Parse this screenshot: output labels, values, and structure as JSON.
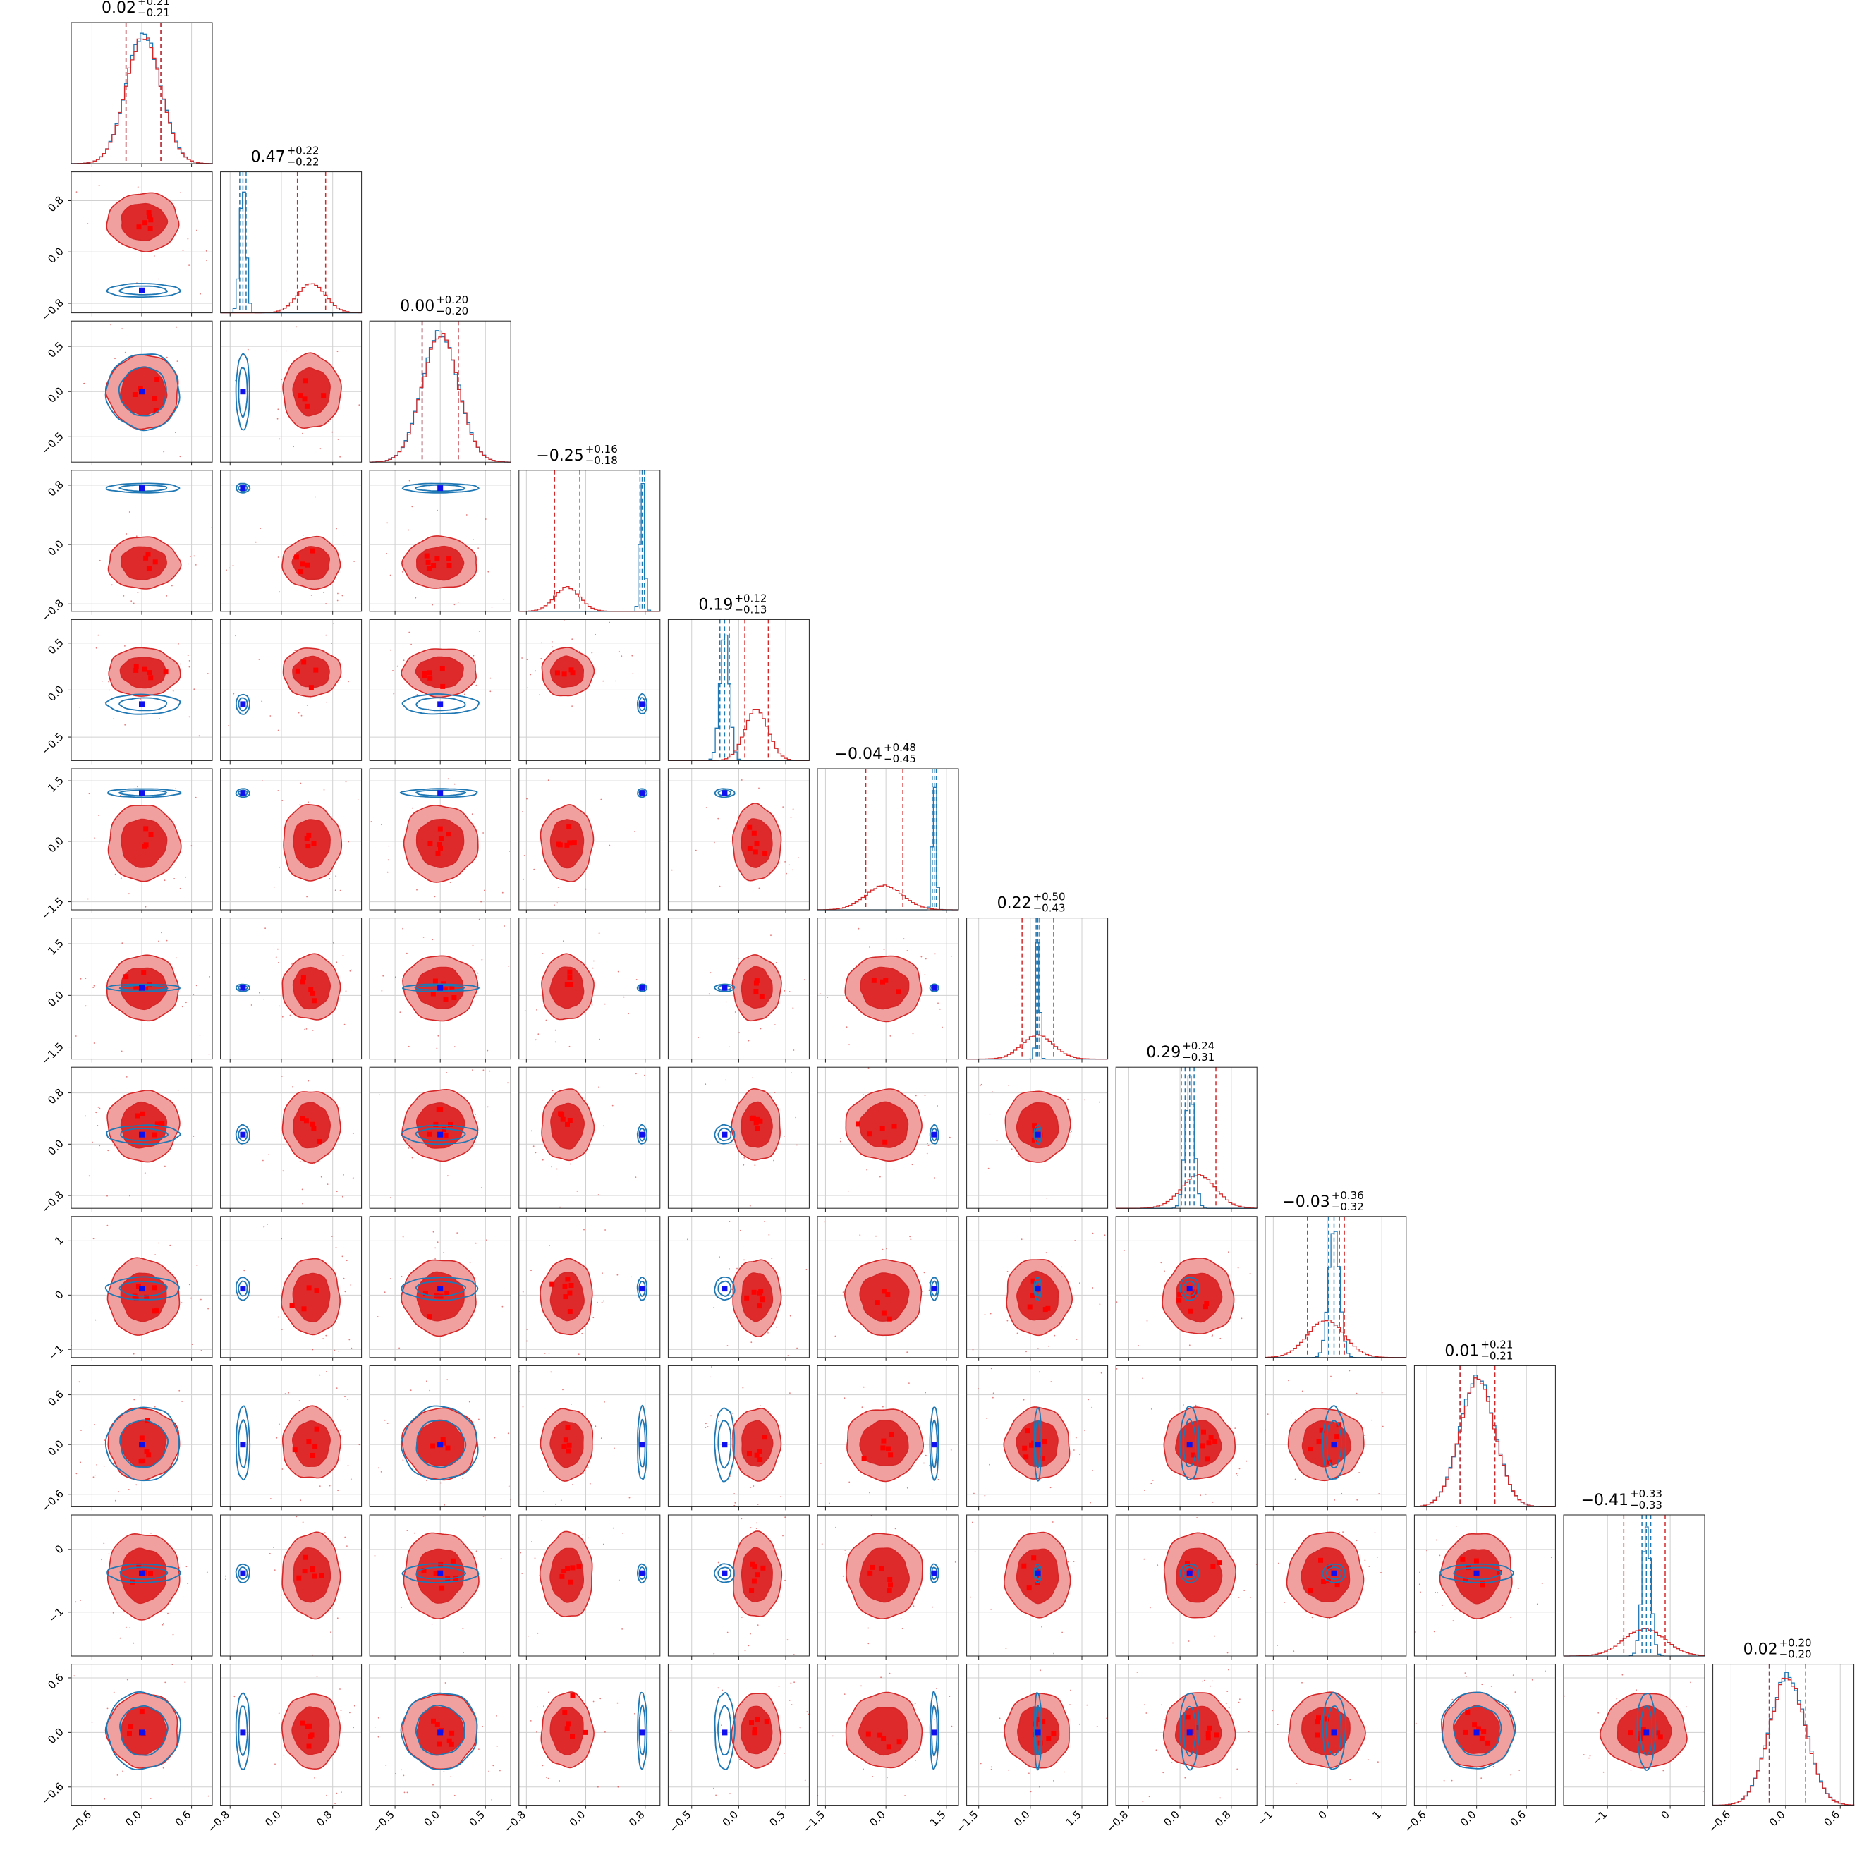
{
  "chart_data": {
    "type": "corner",
    "n_params": 12,
    "colors": {
      "red": "#d62728",
      "red_fill_outer": "#f1a0a0",
      "red_fill_inner": "#de2a2a",
      "blue": "#1f77b4",
      "truth_blue": "#1010ee",
      "truth_red": "#ff0000",
      "grid": "#d0d0d0"
    },
    "grid": true,
    "params": [
      {
        "range": [
          -0.85,
          0.85
        ],
        "red_mean": 0.02,
        "red_sd": 0.21,
        "blue_mean": 0.02,
        "blue_sd": 0.21,
        "truth": 0.0,
        "ticks": [
          {
            "v": -0.6,
            "label": "−0.6"
          },
          {
            "v": 0.0,
            "label": "0.0"
          },
          {
            "v": 0.6,
            "label": "0.6"
          }
        ],
        "title": {
          "median": "0.02",
          "plus": "+0.21",
          "minus": "−0.21"
        }
      },
      {
        "range": [
          -0.95,
          1.25
        ],
        "red_mean": 0.47,
        "red_sd": 0.22,
        "blue_mean": -0.6,
        "blue_sd": 0.05,
        "truth": -0.6,
        "ticks": [
          {
            "v": -0.8,
            "label": "−0.8"
          },
          {
            "v": 0.0,
            "label": "0.0"
          },
          {
            "v": 0.8,
            "label": "0.8"
          }
        ],
        "title": {
          "median": "0.47",
          "plus": "+0.22",
          "minus": "−0.22"
        }
      },
      {
        "range": [
          -0.78,
          0.78
        ],
        "red_mean": 0.0,
        "red_sd": 0.2,
        "blue_mean": 0.0,
        "blue_sd": 0.2,
        "truth": 0.0,
        "ticks": [
          {
            "v": -0.5,
            "label": "−0.5"
          },
          {
            "v": 0.0,
            "label": "0.0"
          },
          {
            "v": 0.5,
            "label": "0.5"
          }
        ],
        "title": {
          "median": "0.00",
          "plus": "+0.20",
          "minus": "−0.20"
        }
      },
      {
        "range": [
          -0.9,
          1.0
        ],
        "red_mean": -0.25,
        "red_sd": 0.17,
        "blue_mean": 0.76,
        "blue_sd": 0.03,
        "truth": 0.76,
        "ticks": [
          {
            "v": -0.8,
            "label": "−0.8"
          },
          {
            "v": 0.0,
            "label": "0.0"
          },
          {
            "v": 0.8,
            "label": "0.8"
          }
        ],
        "title": {
          "median": "−0.25",
          "plus": "+0.16",
          "minus": "−0.18"
        }
      },
      {
        "range": [
          -0.75,
          0.75
        ],
        "red_mean": 0.19,
        "red_sd": 0.125,
        "blue_mean": -0.15,
        "blue_sd": 0.05,
        "truth": -0.15,
        "ticks": [
          {
            "v": -0.5,
            "label": "−0.5"
          },
          {
            "v": 0.0,
            "label": "0.0"
          },
          {
            "v": 0.5,
            "label": "0.5"
          }
        ],
        "title": {
          "median": "0.19",
          "plus": "+0.12",
          "minus": "−0.13"
        }
      },
      {
        "range": [
          -1.7,
          1.8
        ],
        "red_mean": -0.04,
        "red_sd": 0.46,
        "blue_mean": 1.2,
        "blue_sd": 0.05,
        "truth": 1.2,
        "ticks": [
          {
            "v": -1.5,
            "label": "−1.5"
          },
          {
            "v": 0.0,
            "label": "0.0"
          },
          {
            "v": 1.5,
            "label": "1.5"
          }
        ],
        "title": {
          "median": "−0.04",
          "plus": "+0.48",
          "minus": "−0.45"
        }
      },
      {
        "range": [
          -1.85,
          2.25
        ],
        "red_mean": 0.22,
        "red_sd": 0.46,
        "blue_mean": 0.22,
        "blue_sd": 0.05,
        "truth": 0.22,
        "ticks": [
          {
            "v": -1.5,
            "label": "−1.5"
          },
          {
            "v": 0.0,
            "label": "0.0"
          },
          {
            "v": 1.5,
            "label": "1.5"
          }
        ],
        "title": {
          "median": "0.22",
          "plus": "+0.50",
          "minus": "−0.43"
        }
      },
      {
        "range": [
          -1.0,
          1.2
        ],
        "red_mean": 0.29,
        "red_sd": 0.27,
        "blue_mean": 0.15,
        "blue_sd": 0.07,
        "truth": 0.15,
        "ticks": [
          {
            "v": -0.8,
            "label": "−0.8"
          },
          {
            "v": 0.0,
            "label": "0.0"
          },
          {
            "v": 0.8,
            "label": "0.8"
          }
        ],
        "title": {
          "median": "0.29",
          "plus": "+0.24",
          "minus": "−0.31"
        }
      },
      {
        "range": [
          -1.15,
          1.45
        ],
        "red_mean": -0.03,
        "red_sd": 0.34,
        "blue_mean": 0.12,
        "blue_sd": 0.1,
        "truth": 0.12,
        "ticks": [
          {
            "v": -1,
            "label": "−1"
          },
          {
            "v": 0,
            "label": "0"
          },
          {
            "v": 1,
            "label": "1"
          }
        ],
        "title": {
          "median": "−0.03",
          "plus": "+0.36",
          "minus": "−0.32"
        }
      },
      {
        "range": [
          -0.75,
          0.95
        ],
        "red_mean": 0.01,
        "red_sd": 0.21,
        "blue_mean": 0.01,
        "blue_sd": 0.21,
        "truth": 0.0,
        "ticks": [
          {
            "v": -0.6,
            "label": "−0.6"
          },
          {
            "v": 0.0,
            "label": "0.0"
          },
          {
            "v": 0.6,
            "label": "0.6"
          }
        ],
        "title": {
          "median": "0.01",
          "plus": "+0.21",
          "minus": "−0.21"
        }
      },
      {
        "range": [
          -1.7,
          0.55
        ],
        "red_mean": -0.41,
        "red_sd": 0.33,
        "blue_mean": -0.38,
        "blue_sd": 0.07,
        "truth": -0.38,
        "ticks": [
          {
            "v": -1,
            "label": "−1"
          },
          {
            "v": 0,
            "label": "0"
          }
        ],
        "title": {
          "median": "−0.41",
          "plus": "+0.33",
          "minus": "−0.33"
        }
      },
      {
        "range": [
          -0.8,
          0.75
        ],
        "red_mean": 0.02,
        "red_sd": 0.2,
        "blue_mean": 0.02,
        "blue_sd": 0.2,
        "truth": 0.0,
        "ticks": [
          {
            "v": -0.6,
            "label": "−0.6"
          },
          {
            "v": 0.0,
            "label": "0.0"
          },
          {
            "v": 0.6,
            "label": "0.6"
          }
        ],
        "title": {
          "median": "0.02",
          "plus": "+0.20",
          "minus": "−0.20"
        }
      }
    ]
  }
}
